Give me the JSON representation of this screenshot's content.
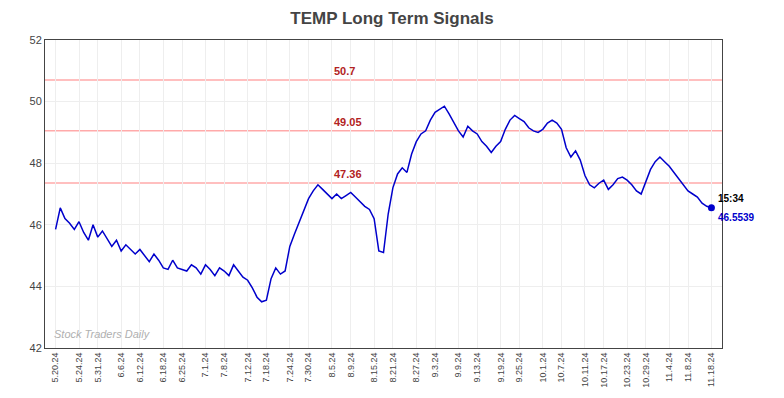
{
  "chart_data": {
    "type": "line",
    "title": "TEMP Long Term Signals",
    "categories": [
      "5.20.24",
      null,
      null,
      null,
      null,
      "5.24.24",
      null,
      null,
      null,
      "5.31.24",
      null,
      null,
      null,
      null,
      "6.6.24",
      null,
      null,
      null,
      "6.12.24",
      null,
      null,
      null,
      null,
      "6.18.24",
      null,
      null,
      null,
      "6.25.24",
      null,
      null,
      null,
      null,
      "7.1.24",
      null,
      null,
      null,
      "7.8.24",
      null,
      null,
      null,
      null,
      "7.12.24",
      null,
      null,
      null,
      "7.18.24",
      null,
      null,
      null,
      null,
      "7.24.24",
      null,
      null,
      null,
      "7.30.24",
      null,
      null,
      null,
      null,
      "8.5.24",
      null,
      null,
      null,
      "8.9.24",
      null,
      null,
      null,
      null,
      "8.15.24",
      null,
      null,
      null,
      "8.21.24",
      null,
      null,
      null,
      null,
      "8.27.24",
      null,
      null,
      null,
      "9.3.24",
      null,
      null,
      null,
      null,
      "9.9.24",
      null,
      null,
      null,
      "9.13.24",
      null,
      null,
      null,
      null,
      "9.19.24",
      null,
      null,
      null,
      "9.25.24",
      null,
      null,
      null,
      null,
      "10.1.24",
      null,
      null,
      null,
      "10.7.24",
      null,
      null,
      null,
      null,
      "10.11.24",
      null,
      null,
      null,
      "10.17.24",
      null,
      null,
      null,
      null,
      "10.23.24",
      null,
      null,
      null,
      "10.29.24",
      null,
      null,
      null,
      null,
      "11.4.24",
      null,
      null,
      null,
      "11.8.24",
      null,
      null,
      null,
      null,
      "11.18.24"
    ],
    "values": [
      45.85,
      46.55,
      46.2,
      46.05,
      45.85,
      46.1,
      45.75,
      45.5,
      46.0,
      45.6,
      45.8,
      45.55,
      45.3,
      45.5,
      45.15,
      45.35,
      45.2,
      45.05,
      45.2,
      45.0,
      44.8,
      45.05,
      44.85,
      44.6,
      44.55,
      44.85,
      44.6,
      44.55,
      44.5,
      44.7,
      44.6,
      44.4,
      44.7,
      44.55,
      44.35,
      44.6,
      44.5,
      44.35,
      44.7,
      44.5,
      44.3,
      44.2,
      43.95,
      43.65,
      43.5,
      43.55,
      44.25,
      44.6,
      44.4,
      44.5,
      45.3,
      45.7,
      46.1,
      46.5,
      46.85,
      47.1,
      47.3,
      47.15,
      47.0,
      46.85,
      47.0,
      46.85,
      46.95,
      47.05,
      46.9,
      46.75,
      46.6,
      46.5,
      46.2,
      45.15,
      45.1,
      46.35,
      47.2,
      47.65,
      47.85,
      47.7,
      48.3,
      48.7,
      48.95,
      49.05,
      49.4,
      49.65,
      49.75,
      49.85,
      49.6,
      49.3,
      49.05,
      48.85,
      49.2,
      49.05,
      48.95,
      48.7,
      48.55,
      48.35,
      48.55,
      48.7,
      49.1,
      49.4,
      49.55,
      49.45,
      49.35,
      49.15,
      49.05,
      49.0,
      49.1,
      49.3,
      49.4,
      49.3,
      49.1,
      48.5,
      48.2,
      48.4,
      48.1,
      47.6,
      47.3,
      47.2,
      47.35,
      47.45,
      47.15,
      47.3,
      47.5,
      47.55,
      47.45,
      47.3,
      47.1,
      47.0,
      47.4,
      47.8,
      48.05,
      48.2,
      48.05,
      47.9,
      47.7,
      47.5,
      47.3,
      47.1,
      47.0,
      46.9,
      46.7,
      46.6,
      46.5539
    ],
    "color": "#0000cc",
    "last_point": {
      "value": 46.5539,
      "label": "15:34",
      "value_label": "46.5539",
      "marker": "circle"
    },
    "reference_lines": [
      {
        "value": 50.7,
        "label": "50.7",
        "color": "#ffaaaa"
      },
      {
        "value": 49.05,
        "label": "49.05",
        "color": "#ffaaaa"
      },
      {
        "value": 47.36,
        "label": "47.36",
        "color": "#ffaaaa"
      }
    ],
    "reference_label_at": "8.5.24",
    "annotations": [
      "Stock Traders Daily"
    ],
    "ylim": [
      42,
      52
    ],
    "yticks": [
      42,
      44,
      46,
      48,
      50,
      52
    ],
    "grid": true
  }
}
